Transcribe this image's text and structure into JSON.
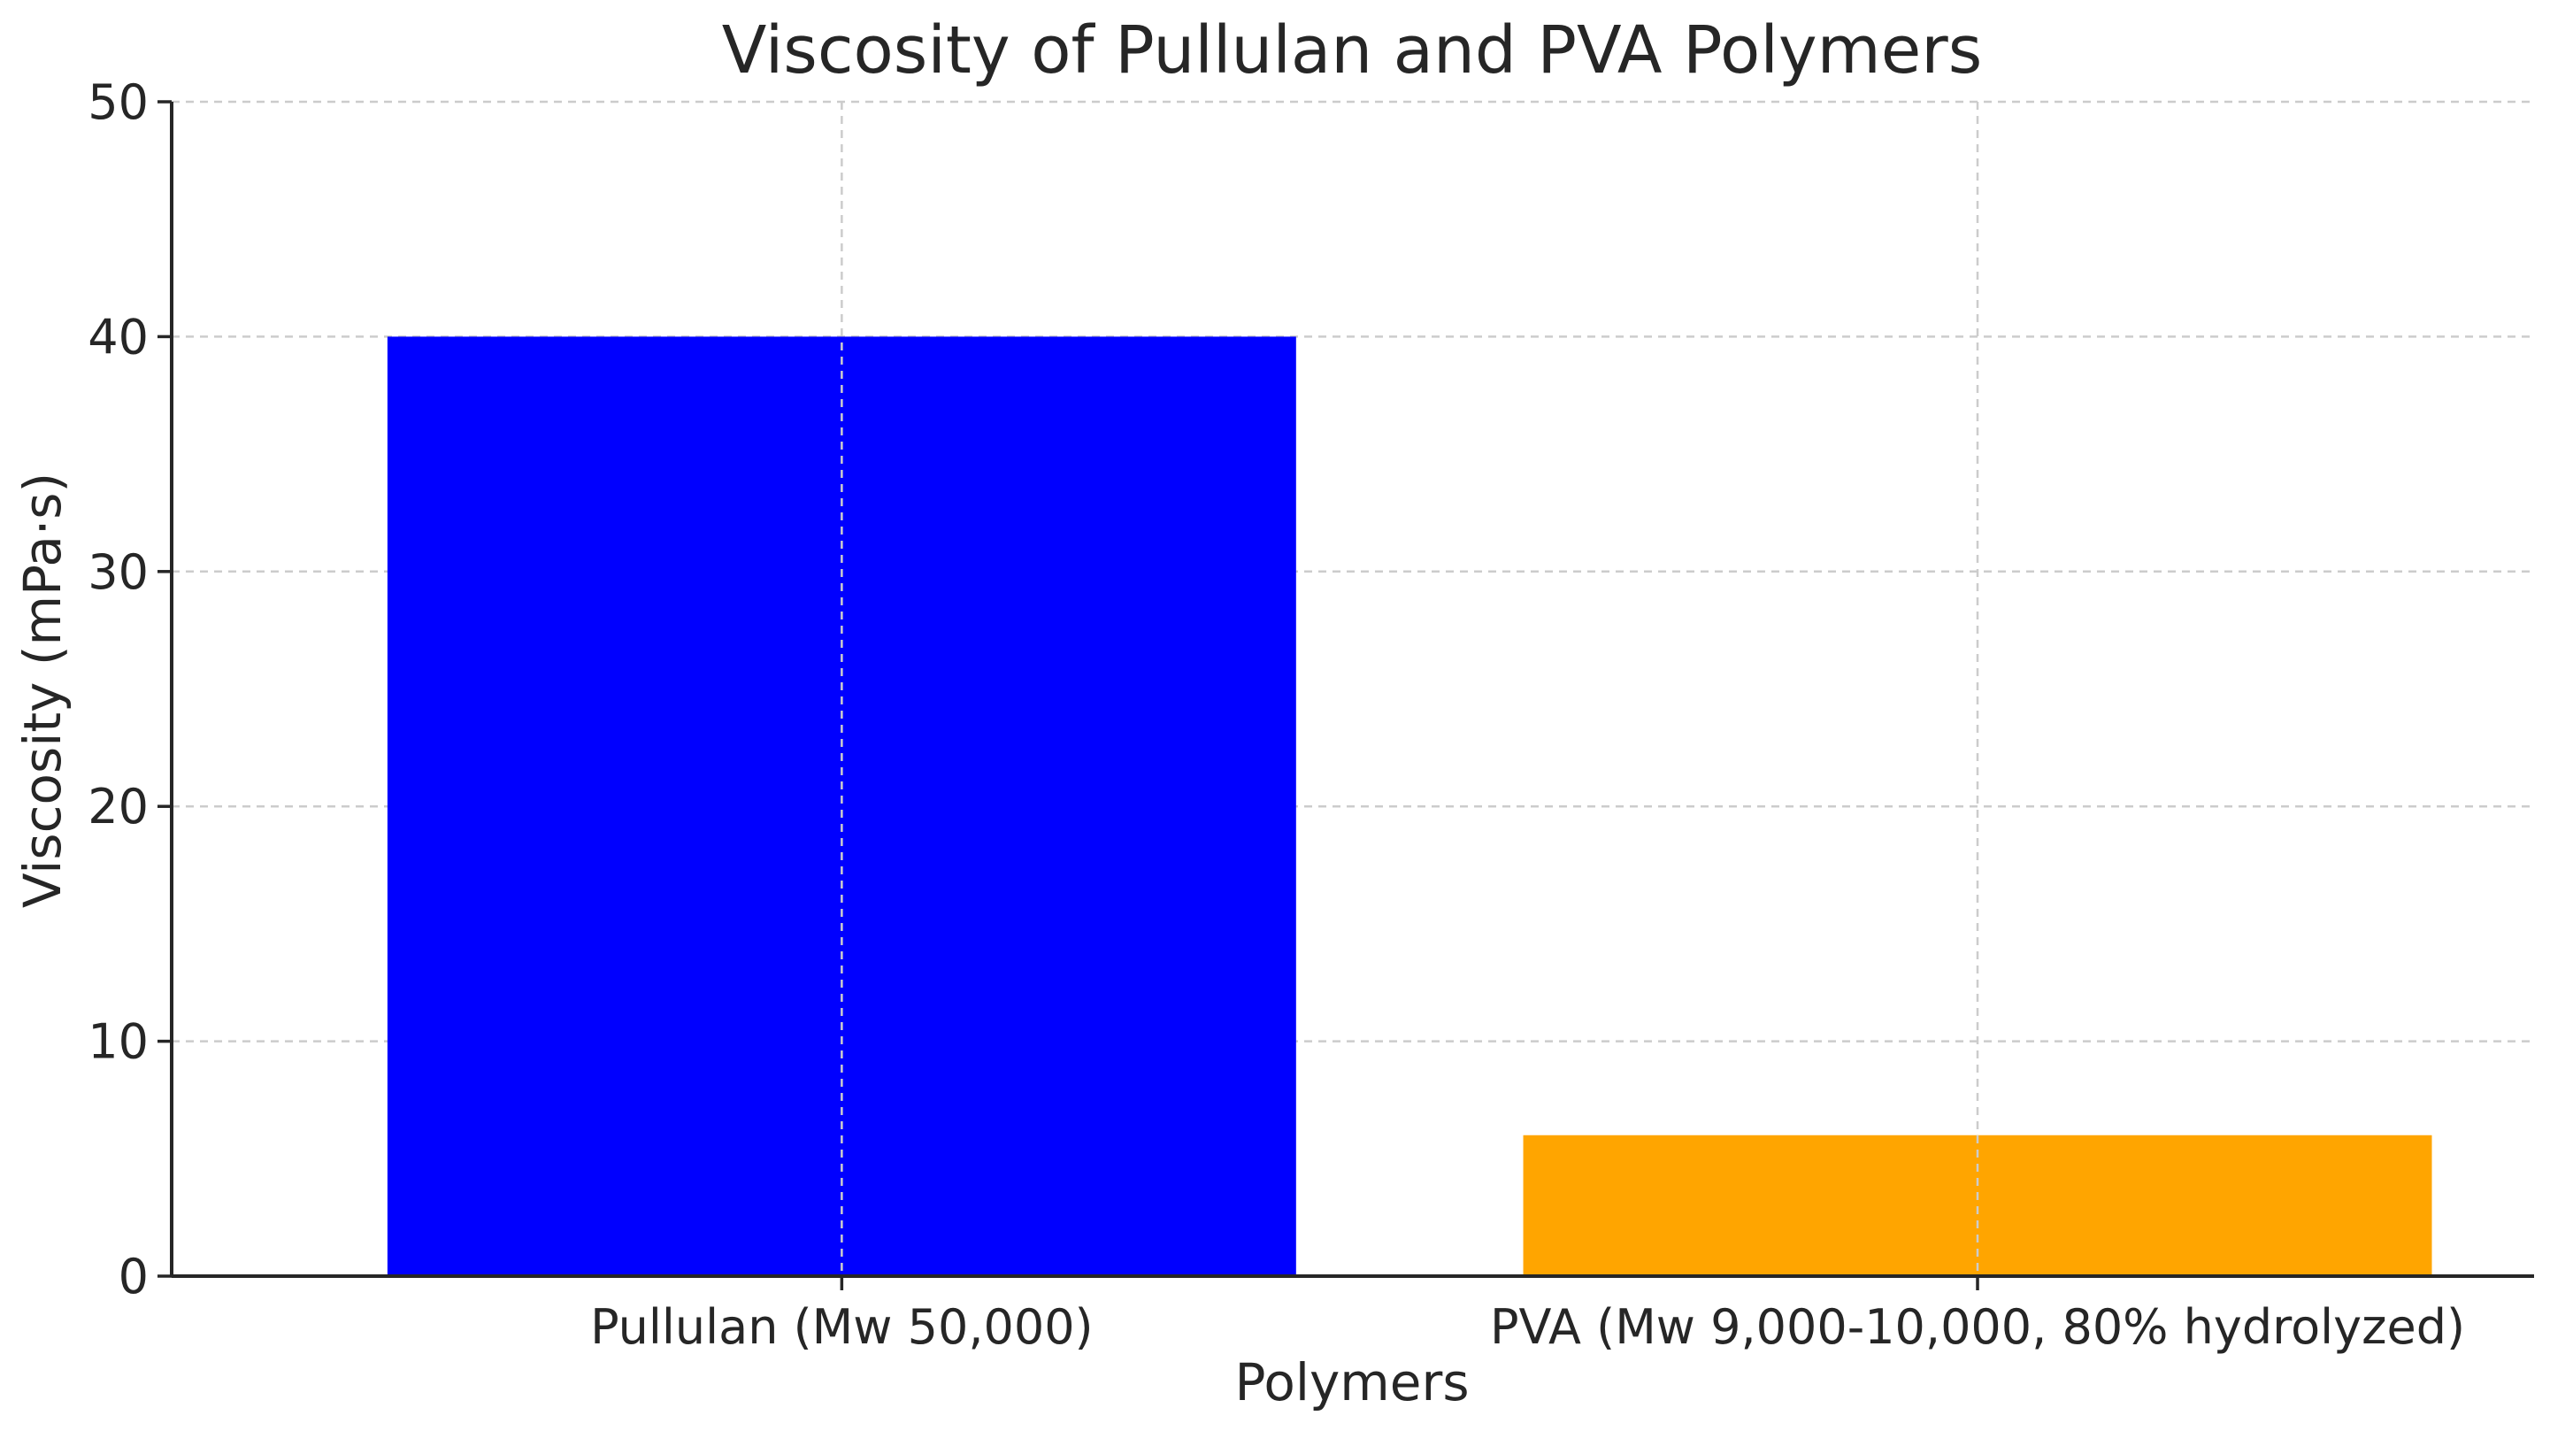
{
  "chart_data": {
    "type": "bar",
    "title": "Viscosity of Pullulan and PVA Polymers",
    "xlabel": "Polymers",
    "ylabel": "Viscosity (mPa·s)",
    "categories": [
      "Pullulan (Mw 50,000)",
      "PVA (Mw 9,000-10,000, 80% hydrolyzed)"
    ],
    "values": [
      40,
      6
    ],
    "colors": [
      "#0000ff",
      "#ffa500"
    ],
    "ylim": [
      0,
      50
    ],
    "yticks": [
      0,
      10,
      20,
      30,
      40,
      50
    ],
    "grid": true
  }
}
